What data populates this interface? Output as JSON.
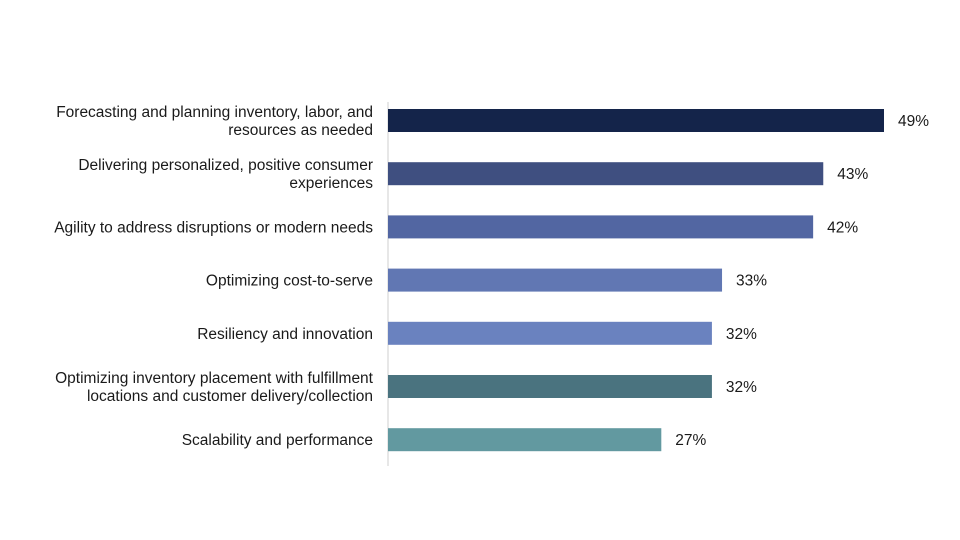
{
  "chart_data": {
    "type": "bar",
    "orientation": "horizontal",
    "categories": [
      "Forecasting and planning inventory, labor, and resources as needed",
      "Delivering personalized, positive consumer experiences",
      "Agility to address disruptions or modern needs",
      "Optimizing cost-to-serve",
      "Resiliency and innovation",
      "Optimizing inventory placement with fulfillment locations and customer delivery/collection",
      "Scalability and performance"
    ],
    "category_lines": [
      [
        "Forecasting and planning inventory, labor, and",
        "resources as needed"
      ],
      [
        "Delivering personalized, positive consumer",
        "experiences"
      ],
      [
        "Agility to address disruptions or modern needs"
      ],
      [
        "Optimizing cost-to-serve"
      ],
      [
        "Resiliency and innovation"
      ],
      [
        "Optimizing inventory placement with fulfillment",
        "locations and customer delivery/collection"
      ],
      [
        "Scalability and performance"
      ]
    ],
    "values": [
      49,
      43,
      42,
      33,
      32,
      32,
      27
    ],
    "value_labels": [
      "49%",
      "43%",
      "42%",
      "33%",
      "32%",
      "32%",
      "27%"
    ],
    "colors": [
      "#14244a",
      "#3f4f80",
      "#5266a2",
      "#6177b3",
      "#6a82bf",
      "#4a737f",
      "#6299a0"
    ],
    "title": "",
    "xlabel": "",
    "ylabel": "",
    "xlim": [
      0,
      49
    ],
    "grid": false,
    "legend": "none"
  }
}
